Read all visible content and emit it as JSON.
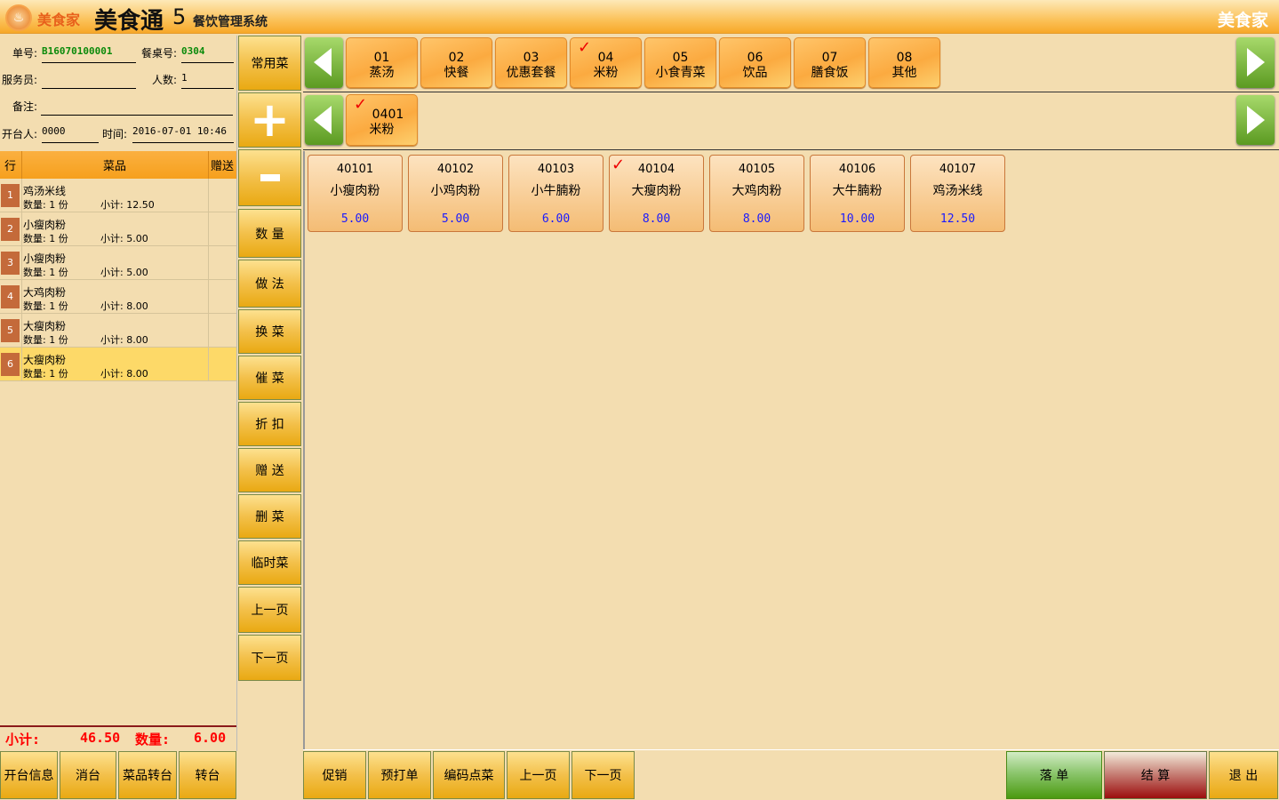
{
  "header": {
    "brand": "美食家",
    "app_name": "美食通",
    "version": "5",
    "subtitle": "餐饮管理系统",
    "brand_right": "美食家"
  },
  "order_info": {
    "order_no_label": "单号:",
    "order_no": "B16070100001",
    "table_label": "餐桌号:",
    "table_no": "0304",
    "waiter_label": "服务员:",
    "waiter": "",
    "guests_label": "人数:",
    "guests": "1",
    "remark_label": "备注:",
    "remark": "",
    "opener_label": "开台人:",
    "opener": "0000",
    "time_label": "时间:",
    "time": "2016-07-01 10:46"
  },
  "order_table": {
    "headers": [
      "行",
      "菜品",
      "赠送"
    ],
    "qty_label": "数量:",
    "subtotal_label": "小计:",
    "rows": [
      {
        "no": "1",
        "name": "鸡汤米线",
        "qty": "1 份",
        "subtotal": "12.50"
      },
      {
        "no": "2",
        "name": "小瘦肉粉",
        "qty": "1 份",
        "subtotal": "5.00"
      },
      {
        "no": "3",
        "name": "小瘦肉粉",
        "qty": "1 份",
        "subtotal": "5.00"
      },
      {
        "no": "4",
        "name": "大鸡肉粉",
        "qty": "1 份",
        "subtotal": "8.00"
      },
      {
        "no": "5",
        "name": "大瘦肉粉",
        "qty": "1 份",
        "subtotal": "8.00"
      },
      {
        "no": "6",
        "name": "大瘦肉粉",
        "qty": "1 份",
        "subtotal": "8.00",
        "selected": true
      }
    ]
  },
  "summary": {
    "subtotal_label": "小计:",
    "subtotal": "46.50",
    "qty_label": "数量:",
    "qty": "6.00"
  },
  "left_buttons": [
    "开台信息",
    "消台",
    "菜品转台",
    "转台"
  ],
  "side_buttons": [
    "常用菜",
    "数 量",
    "做 法",
    "换 菜",
    "催 菜",
    "折 扣",
    "赠 送",
    "删 菜",
    "临时菜",
    "上一页",
    "下一页"
  ],
  "categories": [
    {
      "code": "01",
      "name": "蒸汤"
    },
    {
      "code": "02",
      "name": "快餐"
    },
    {
      "code": "03",
      "name": "优惠套餐"
    },
    {
      "code": "04",
      "name": "米粉",
      "checked": true
    },
    {
      "code": "05",
      "name": "小食青菜"
    },
    {
      "code": "06",
      "name": "饮品"
    },
    {
      "code": "07",
      "name": "膳食饭"
    },
    {
      "code": "08",
      "name": "其他"
    }
  ],
  "subcategories": [
    {
      "code": "0401",
      "name": "米粉",
      "checked": true
    }
  ],
  "dishes": [
    {
      "code": "40101",
      "name": "小瘦肉粉",
      "price": "5.00"
    },
    {
      "code": "40102",
      "name": "小鸡肉粉",
      "price": "5.00"
    },
    {
      "code": "40103",
      "name": "小牛腩粉",
      "price": "6.00"
    },
    {
      "code": "40104",
      "name": "大瘦肉粉",
      "price": "8.00",
      "checked": true
    },
    {
      "code": "40105",
      "name": "大鸡肉粉",
      "price": "8.00"
    },
    {
      "code": "40106",
      "name": "大牛腩粉",
      "price": "10.00"
    },
    {
      "code": "40107",
      "name": "鸡汤米线",
      "price": "12.50"
    }
  ],
  "bottom_buttons": [
    "促销",
    "预打单",
    "编码点菜",
    "上一页",
    "下一页"
  ],
  "action_buttons": {
    "submit": "落 单",
    "checkout": "结 算",
    "exit": "退 出"
  },
  "colors": {
    "submit": "#4e9a18",
    "checkout": "#a01010",
    "accent": "#f6a01d"
  }
}
